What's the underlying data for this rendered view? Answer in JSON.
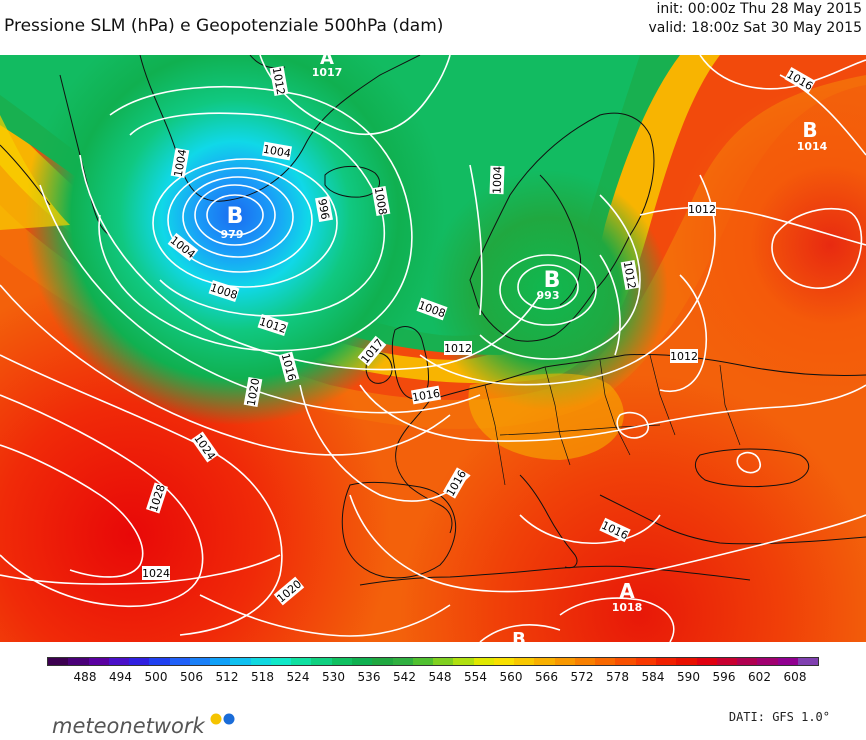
{
  "header": {
    "title": "Pressione SLM (hPa) e Geopotenziale 500hPa (dam)",
    "init": "init: 00:00z Thu 28 May 2015",
    "valid": "valid: 18:00z Sat 30 May 2015"
  },
  "map": {
    "isobar_labels": [
      "1012",
      "1017",
      "1016",
      "1014",
      "1004",
      "1008",
      "1012",
      "996",
      "1008",
      "1004",
      "1008",
      "1012",
      "1016",
      "1020",
      "1024",
      "1028",
      "1024",
      "1020",
      "1016",
      "1012",
      "1016",
      "1012",
      "1016",
      "1018",
      "1004",
      "1004",
      "1008",
      "1012"
    ],
    "pressure_centers": [
      {
        "symbol": "A",
        "value": "1017"
      },
      {
        "symbol": "B",
        "value": "979"
      },
      {
        "symbol": "B",
        "value": "993"
      },
      {
        "symbol": "B",
        "value": "1014"
      },
      {
        "symbol": "A",
        "value": "1018"
      },
      {
        "symbol": "B",
        "value": ""
      }
    ]
  },
  "colorbar": {
    "labels": [
      "488",
      "494",
      "500",
      "506",
      "512",
      "518",
      "524",
      "530",
      "536",
      "542",
      "548",
      "554",
      "560",
      "566",
      "572",
      "578",
      "584",
      "590",
      "596",
      "602",
      "608"
    ],
    "colors": [
      "#3c0050",
      "#4a0078",
      "#5a00a0",
      "#4a10c8",
      "#3020e0",
      "#2040f0",
      "#2060f8",
      "#1a80f8",
      "#10a0f8",
      "#10c0f0",
      "#10d8e0",
      "#10e8c8",
      "#10e0a0",
      "#10d080",
      "#10c060",
      "#10b050",
      "#20a840",
      "#30b040",
      "#50c030",
      "#80d020",
      "#b0e010",
      "#e0e800",
      "#f8e000",
      "#f8c800",
      "#f8b000",
      "#f89800",
      "#f88000",
      "#f86800",
      "#f85000",
      "#f83800",
      "#f02000",
      "#e81000",
      "#e00010",
      "#c80030",
      "#b00050",
      "#a00070",
      "#900090",
      "#8040b0"
    ]
  },
  "branding": {
    "logo": "meteonetwork",
    "source": "DATI: GFS 1.0°"
  }
}
